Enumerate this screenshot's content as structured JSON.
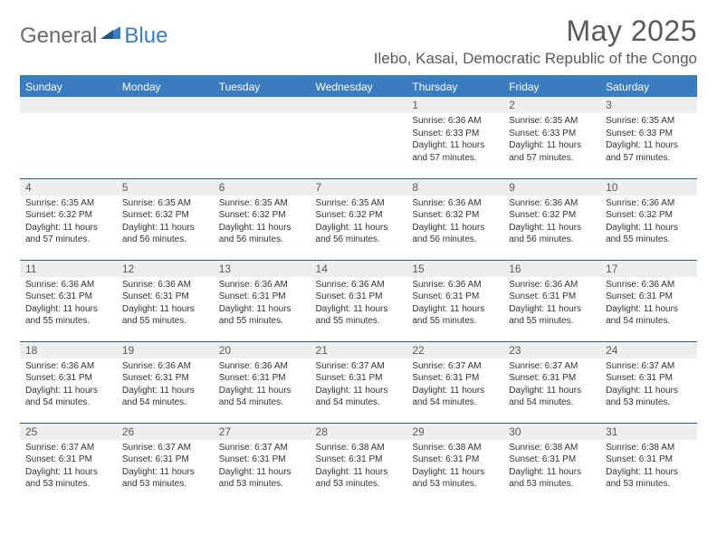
{
  "logo": {
    "text1": "General",
    "text2": "Blue"
  },
  "title": "May 2025",
  "location": "Ilebo, Kasai, Democratic Republic of the Congo",
  "colors": {
    "header_bg": "#3b7bbf",
    "header_text": "#ffffff",
    "daynum_bg": "#eceeef",
    "text": "#595959",
    "border": "#2e5f8f"
  },
  "weekdays": [
    "Sunday",
    "Monday",
    "Tuesday",
    "Wednesday",
    "Thursday",
    "Friday",
    "Saturday"
  ],
  "weeks": [
    [
      null,
      null,
      null,
      null,
      {
        "n": "1",
        "sr": "6:36 AM",
        "ss": "6:33 PM",
        "dl": "11 hours and 57 minutes."
      },
      {
        "n": "2",
        "sr": "6:35 AM",
        "ss": "6:33 PM",
        "dl": "11 hours and 57 minutes."
      },
      {
        "n": "3",
        "sr": "6:35 AM",
        "ss": "6:33 PM",
        "dl": "11 hours and 57 minutes."
      }
    ],
    [
      {
        "n": "4",
        "sr": "6:35 AM",
        "ss": "6:32 PM",
        "dl": "11 hours and 57 minutes."
      },
      {
        "n": "5",
        "sr": "6:35 AM",
        "ss": "6:32 PM",
        "dl": "11 hours and 56 minutes."
      },
      {
        "n": "6",
        "sr": "6:35 AM",
        "ss": "6:32 PM",
        "dl": "11 hours and 56 minutes."
      },
      {
        "n": "7",
        "sr": "6:35 AM",
        "ss": "6:32 PM",
        "dl": "11 hours and 56 minutes."
      },
      {
        "n": "8",
        "sr": "6:36 AM",
        "ss": "6:32 PM",
        "dl": "11 hours and 56 minutes."
      },
      {
        "n": "9",
        "sr": "6:36 AM",
        "ss": "6:32 PM",
        "dl": "11 hours and 56 minutes."
      },
      {
        "n": "10",
        "sr": "6:36 AM",
        "ss": "6:32 PM",
        "dl": "11 hours and 55 minutes."
      }
    ],
    [
      {
        "n": "11",
        "sr": "6:36 AM",
        "ss": "6:31 PM",
        "dl": "11 hours and 55 minutes."
      },
      {
        "n": "12",
        "sr": "6:36 AM",
        "ss": "6:31 PM",
        "dl": "11 hours and 55 minutes."
      },
      {
        "n": "13",
        "sr": "6:36 AM",
        "ss": "6:31 PM",
        "dl": "11 hours and 55 minutes."
      },
      {
        "n": "14",
        "sr": "6:36 AM",
        "ss": "6:31 PM",
        "dl": "11 hours and 55 minutes."
      },
      {
        "n": "15",
        "sr": "6:36 AM",
        "ss": "6:31 PM",
        "dl": "11 hours and 55 minutes."
      },
      {
        "n": "16",
        "sr": "6:36 AM",
        "ss": "6:31 PM",
        "dl": "11 hours and 55 minutes."
      },
      {
        "n": "17",
        "sr": "6:36 AM",
        "ss": "6:31 PM",
        "dl": "11 hours and 54 minutes."
      }
    ],
    [
      {
        "n": "18",
        "sr": "6:36 AM",
        "ss": "6:31 PM",
        "dl": "11 hours and 54 minutes."
      },
      {
        "n": "19",
        "sr": "6:36 AM",
        "ss": "6:31 PM",
        "dl": "11 hours and 54 minutes."
      },
      {
        "n": "20",
        "sr": "6:36 AM",
        "ss": "6:31 PM",
        "dl": "11 hours and 54 minutes."
      },
      {
        "n": "21",
        "sr": "6:37 AM",
        "ss": "6:31 PM",
        "dl": "11 hours and 54 minutes."
      },
      {
        "n": "22",
        "sr": "6:37 AM",
        "ss": "6:31 PM",
        "dl": "11 hours and 54 minutes."
      },
      {
        "n": "23",
        "sr": "6:37 AM",
        "ss": "6:31 PM",
        "dl": "11 hours and 54 minutes."
      },
      {
        "n": "24",
        "sr": "6:37 AM",
        "ss": "6:31 PM",
        "dl": "11 hours and 53 minutes."
      }
    ],
    [
      {
        "n": "25",
        "sr": "6:37 AM",
        "ss": "6:31 PM",
        "dl": "11 hours and 53 minutes."
      },
      {
        "n": "26",
        "sr": "6:37 AM",
        "ss": "6:31 PM",
        "dl": "11 hours and 53 minutes."
      },
      {
        "n": "27",
        "sr": "6:37 AM",
        "ss": "6:31 PM",
        "dl": "11 hours and 53 minutes."
      },
      {
        "n": "28",
        "sr": "6:38 AM",
        "ss": "6:31 PM",
        "dl": "11 hours and 53 minutes."
      },
      {
        "n": "29",
        "sr": "6:38 AM",
        "ss": "6:31 PM",
        "dl": "11 hours and 53 minutes."
      },
      {
        "n": "30",
        "sr": "6:38 AM",
        "ss": "6:31 PM",
        "dl": "11 hours and 53 minutes."
      },
      {
        "n": "31",
        "sr": "6:38 AM",
        "ss": "6:31 PM",
        "dl": "11 hours and 53 minutes."
      }
    ]
  ],
  "labels": {
    "sunrise": "Sunrise:",
    "sunset": "Sunset:",
    "daylight": "Daylight:"
  }
}
